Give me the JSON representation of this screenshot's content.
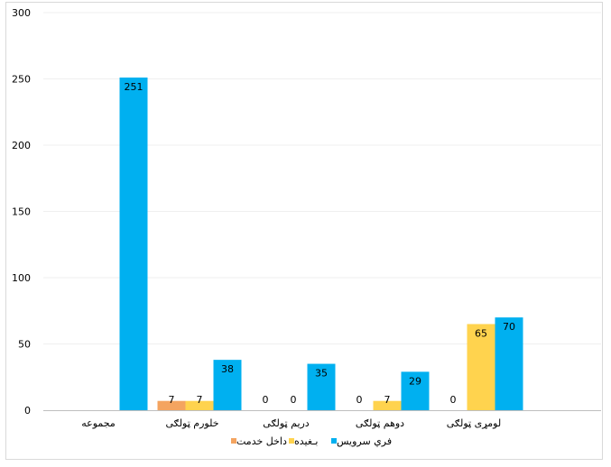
{
  "chart_data": {
    "type": "bar",
    "categories": [
      "مجموعه",
      "خلورم ټولګی",
      "دریم ټولګی",
      "دوهم ټولګی",
      "لومړی ټولګی"
    ],
    "series": [
      {
        "name": "داخل خدمت",
        "values": [
          null,
          7,
          0,
          0,
          0
        ],
        "color": "#F4A460"
      },
      {
        "name": "بـغیده",
        "values": [
          null,
          7,
          0,
          7,
          65
        ],
        "color": "#FFD34E"
      },
      {
        "name": "فري سرویس",
        "values": [
          251,
          38,
          35,
          29,
          70
        ],
        "color": "#00B0F0"
      }
    ],
    "data_labels": [
      [
        null,
        "7",
        "0",
        "0",
        "0"
      ],
      [
        null,
        "7",
        "0",
        "7",
        "65"
      ],
      [
        "251",
        "38",
        "35",
        "29",
        "70"
      ]
    ],
    "y_ticks": [
      "0",
      "50",
      "100",
      "150",
      "200",
      "250",
      "300"
    ],
    "ylim": [
      0,
      300
    ],
    "grid": true,
    "legend": "bottom",
    "title": "",
    "xlabel": "",
    "ylabel": ""
  }
}
